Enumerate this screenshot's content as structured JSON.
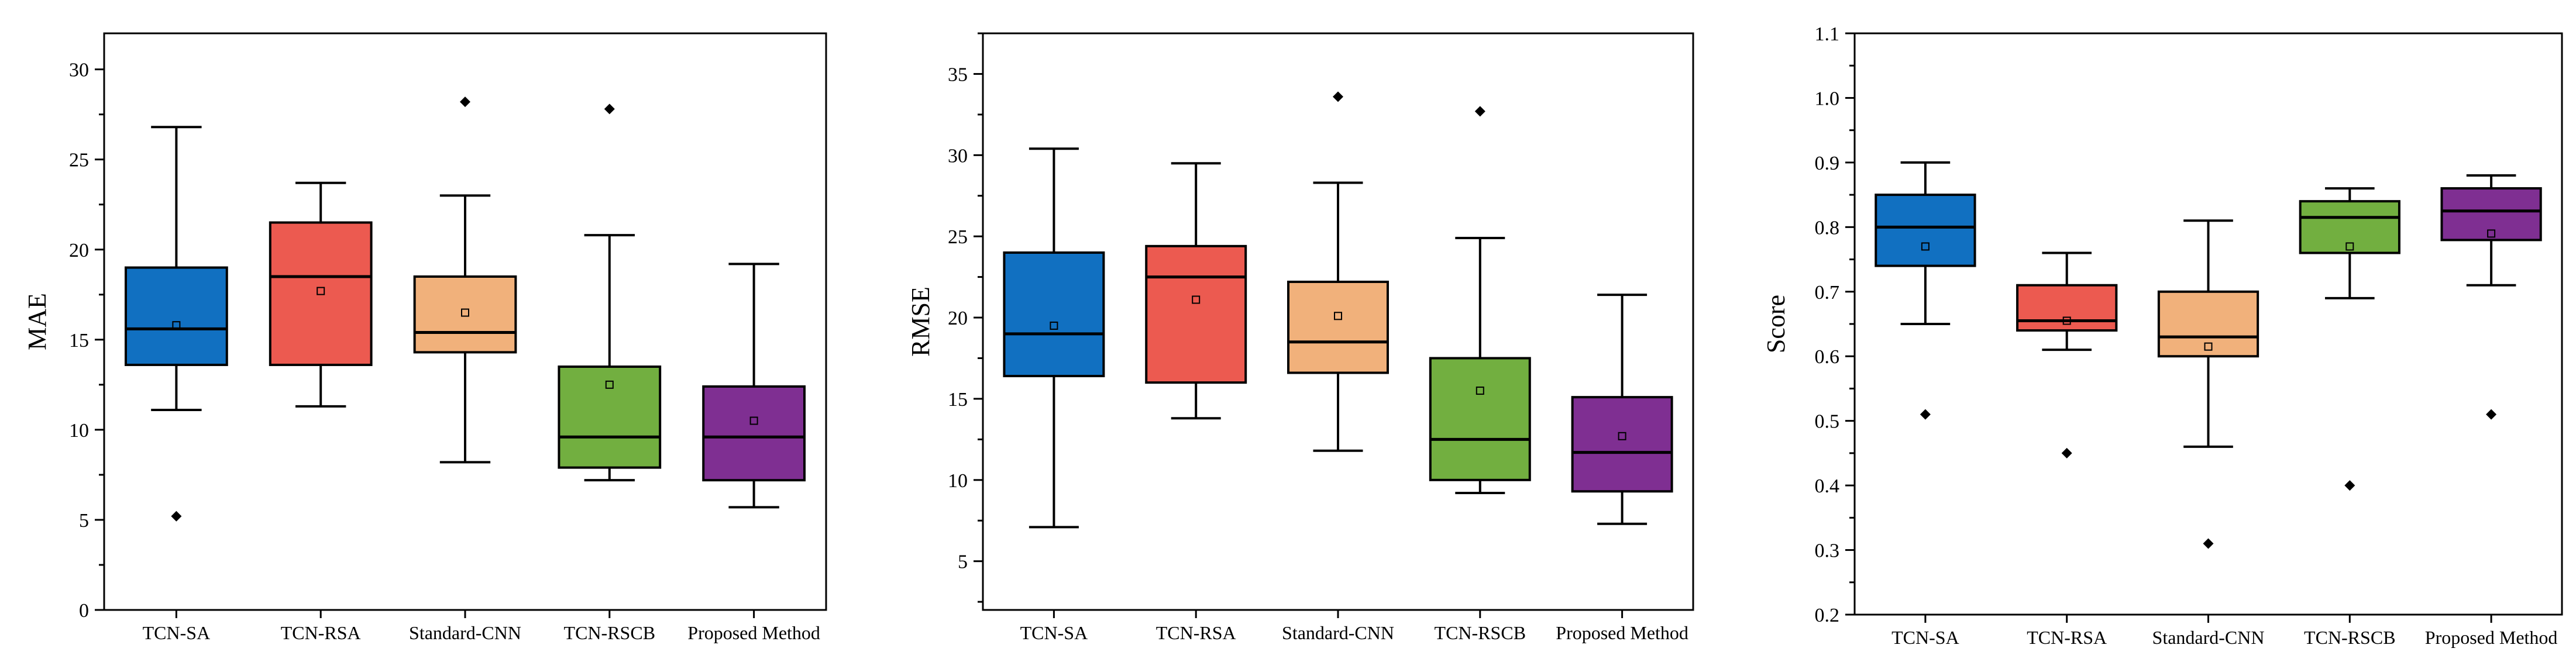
{
  "colors": {
    "TCN-SA": "#1170c1",
    "TCN-RSA": "#ec5a50",
    "Standard-CNN": "#f1b17b",
    "TCN-RSCB": "#72af40",
    "Proposed Method": "#7f2f92"
  },
  "chart_data": [
    {
      "type": "box",
      "ylabel": "MAE",
      "ylim": [
        0,
        32
      ],
      "yticks": [
        0,
        5,
        10,
        15,
        20,
        25,
        30
      ],
      "categories": [
        "TCN-SA",
        "TCN-RSA",
        "Standard-CNN",
        "TCN-RSCB",
        "Proposed Method"
      ],
      "boxes": [
        {
          "name": "TCN-SA",
          "min": 11.1,
          "q1": 13.6,
          "median": 15.6,
          "q3": 19.0,
          "max": 26.8,
          "mean": 15.8,
          "outliers": [
            5.2
          ]
        },
        {
          "name": "TCN-RSA",
          "min": 11.3,
          "q1": 13.6,
          "median": 18.5,
          "q3": 21.5,
          "max": 23.7,
          "mean": 17.7,
          "outliers": []
        },
        {
          "name": "Standard-CNN",
          "min": 8.2,
          "q1": 14.3,
          "median": 15.4,
          "q3": 18.5,
          "max": 23.0,
          "mean": 16.5,
          "outliers": [
            28.2
          ]
        },
        {
          "name": "TCN-RSCB",
          "min": 7.2,
          "q1": 7.9,
          "median": 9.6,
          "q3": 13.5,
          "max": 20.8,
          "mean": 12.5,
          "outliers": [
            27.8
          ]
        },
        {
          "name": "Proposed Method",
          "min": 5.7,
          "q1": 7.2,
          "median": 9.6,
          "q3": 12.4,
          "max": 19.2,
          "mean": 10.5,
          "outliers": []
        }
      ]
    },
    {
      "type": "box",
      "ylabel": "RMSE",
      "ylim": [
        2,
        37.5
      ],
      "yticks": [
        5,
        10,
        15,
        20,
        25,
        30,
        35
      ],
      "categories": [
        "TCN-SA",
        "TCN-RSA",
        "Standard-CNN",
        "TCN-RSCB",
        "Proposed Method"
      ],
      "boxes": [
        {
          "name": "TCN-SA",
          "min": 7.1,
          "q1": 16.4,
          "median": 19.0,
          "q3": 24.0,
          "max": 30.4,
          "mean": 19.5,
          "outliers": []
        },
        {
          "name": "TCN-RSA",
          "min": 13.8,
          "q1": 16.0,
          "median": 22.5,
          "q3": 24.4,
          "max": 29.5,
          "mean": 21.1,
          "outliers": []
        },
        {
          "name": "Standard-CNN",
          "min": 11.8,
          "q1": 16.6,
          "median": 18.5,
          "q3": 22.2,
          "max": 28.3,
          "mean": 20.1,
          "outliers": [
            33.6
          ]
        },
        {
          "name": "TCN-RSCB",
          "min": 9.2,
          "q1": 10.0,
          "median": 12.5,
          "q3": 17.5,
          "max": 24.9,
          "mean": 15.5,
          "outliers": [
            32.7
          ]
        },
        {
          "name": "Proposed Method",
          "min": 7.3,
          "q1": 9.3,
          "median": 11.7,
          "q3": 15.1,
          "max": 21.4,
          "mean": 12.7,
          "outliers": []
        }
      ]
    },
    {
      "type": "box",
      "ylabel": "Score",
      "ylim": [
        0.2,
        1.1
      ],
      "yticks": [
        0.2,
        0.3,
        0.4,
        0.5,
        0.6,
        0.7,
        0.8,
        0.9,
        1.0,
        1.1
      ],
      "ytick_labels": [
        "0.2",
        "0.3",
        "0.4",
        "0.5",
        "0.6",
        "0.7",
        "0.8",
        "0.9",
        "1.0",
        "1.1"
      ],
      "categories": [
        "TCN-SA",
        "TCN-RSA",
        "Standard-CNN",
        "TCN-RSCB",
        "Proposed Method"
      ],
      "boxes": [
        {
          "name": "TCN-SA",
          "min": 0.65,
          "q1": 0.74,
          "median": 0.8,
          "q3": 0.85,
          "max": 0.9,
          "mean": 0.77,
          "outliers": [
            0.51
          ]
        },
        {
          "name": "TCN-RSA",
          "min": 0.61,
          "q1": 0.64,
          "median": 0.655,
          "q3": 0.71,
          "max": 0.76,
          "mean": 0.655,
          "outliers": [
            0.45
          ]
        },
        {
          "name": "Standard-CNN",
          "min": 0.46,
          "q1": 0.6,
          "median": 0.63,
          "q3": 0.7,
          "max": 0.81,
          "mean": 0.615,
          "outliers": [
            0.31
          ]
        },
        {
          "name": "TCN-RSCB",
          "min": 0.69,
          "q1": 0.76,
          "median": 0.815,
          "q3": 0.84,
          "max": 0.86,
          "mean": 0.77,
          "outliers": [
            0.4
          ]
        },
        {
          "name": "Proposed Method",
          "min": 0.71,
          "q1": 0.78,
          "median": 0.825,
          "q3": 0.86,
          "max": 0.88,
          "mean": 0.79,
          "outliers": [
            0.51
          ]
        }
      ]
    }
  ]
}
